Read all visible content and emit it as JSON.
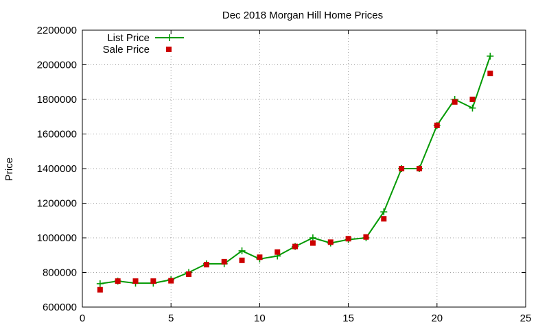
{
  "chart_data": {
    "type": "line",
    "title": "Dec 2018 Morgan Hill Home Prices",
    "xlabel": "",
    "ylabel": "Price",
    "xlim": [
      0,
      25
    ],
    "ylim": [
      600000,
      2200000
    ],
    "xticks": [
      0,
      5,
      10,
      15,
      20,
      25
    ],
    "yticks": [
      600000,
      800000,
      1000000,
      1200000,
      1400000,
      1600000,
      1800000,
      2000000,
      2200000
    ],
    "grid": true,
    "legend_position": "top-left",
    "x": [
      1,
      2,
      3,
      4,
      5,
      6,
      7,
      8,
      9,
      10,
      11,
      12,
      13,
      14,
      15,
      16,
      17,
      18,
      19,
      20,
      21,
      22,
      23
    ],
    "series": [
      {
        "name": "List Price",
        "style": "line-plus",
        "color": "#009900",
        "values": [
          735000,
          750000,
          738000,
          738000,
          758000,
          800000,
          850000,
          850000,
          925000,
          878000,
          895000,
          950000,
          1000000,
          970000,
          990000,
          1000000,
          1150000,
          1400000,
          1400000,
          1650000,
          1800000,
          1750000,
          2050000
        ]
      },
      {
        "name": "Sale Price",
        "style": "square",
        "color": "#cc0000",
        "values": [
          700000,
          750000,
          750000,
          750000,
          752000,
          790000,
          845000,
          862000,
          870000,
          888000,
          918000,
          950000,
          970000,
          975000,
          995000,
          1005000,
          1110000,
          1400000,
          1400000,
          1650000,
          1785000,
          1800000,
          1950000
        ]
      }
    ]
  }
}
